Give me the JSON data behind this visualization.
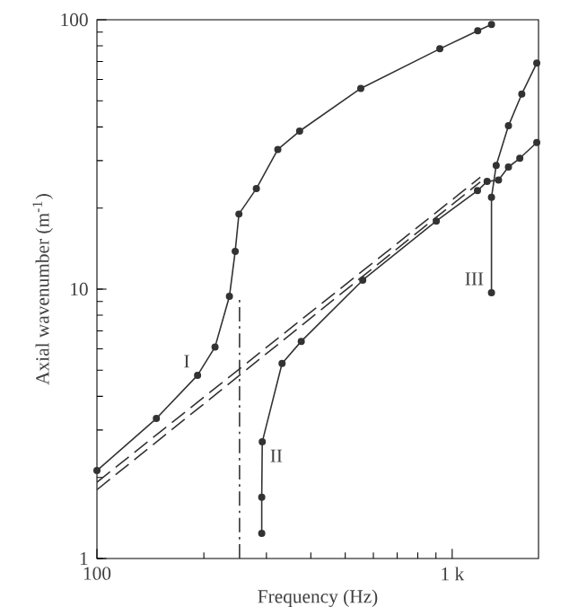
{
  "chart_data": {
    "type": "line",
    "xlabel": "Frequency (Hz)",
    "ylabel": "Axial wavenumber (m$^{-1}$)",
    "log": "xy",
    "xlim": [
      100,
      1750
    ],
    "ylim": [
      1,
      100
    ],
    "xticks": [
      100,
      {
        "value": 200,
        "label": null
      },
      {
        "value": 300,
        "label": null
      },
      {
        "value": 400,
        "label": null
      },
      {
        "value": 500,
        "label": null
      },
      {
        "value": 600,
        "label": null
      },
      {
        "value": 700,
        "label": null
      },
      {
        "value": 800,
        "label": null
      },
      {
        "value": 900,
        "label": null
      },
      {
        "value": 1000,
        "label": "1 k"
      }
    ],
    "yticks": [
      1,
      10,
      100
    ],
    "grid": false,
    "legend": false,
    "series": [
      {
        "name": "I",
        "color": "#333333",
        "marker": "circle",
        "line_style": "solid",
        "x": [
          100,
          147,
          192,
          215,
          236,
          245,
          251,
          281,
          323,
          372,
          553,
          923,
          1180,
          1290
        ],
        "values": [
          2.12,
          3.31,
          4.79,
          6.1,
          9.4,
          13.8,
          19,
          23.6,
          33,
          38.6,
          55.6,
          78,
          91,
          96
        ]
      },
      {
        "name": "II",
        "color": "#333333",
        "marker": "circle",
        "line_style": "solid",
        "x": [
          291,
          291,
          292,
          332,
          376,
          560,
          902,
          1178,
          1254,
          1350,
          1440,
          1550,
          1730
        ],
        "values": [
          1.24,
          1.69,
          2.71,
          5.3,
          6.4,
          10.8,
          17.9,
          23.2,
          25.1,
          25.4,
          28.4,
          30.6,
          35
        ]
      },
      {
        "name": "III",
        "color": "#333333",
        "marker": "circle",
        "line_style": "solid",
        "x": [
          1290,
          1290,
          1330,
          1440,
          1570,
          1730
        ],
        "values": [
          9.7,
          21.9,
          28.8,
          40.4,
          53,
          69
        ]
      },
      {
        "color": "#333333",
        "marker": "none",
        "line_style": "dashed",
        "x": [
          100,
          1200
        ],
        "values": [
          1.92,
          26
        ]
      },
      {
        "color": "#333333",
        "marker": "none",
        "line_style": "dashed",
        "x": [
          100,
          1200
        ],
        "values": [
          1.8,
          25
        ]
      },
      {
        "color": "#333333",
        "marker": "none",
        "line_style": "dashdot",
        "x": [
          252,
          252
        ],
        "values": [
          1,
          9.4
        ]
      }
    ]
  }
}
